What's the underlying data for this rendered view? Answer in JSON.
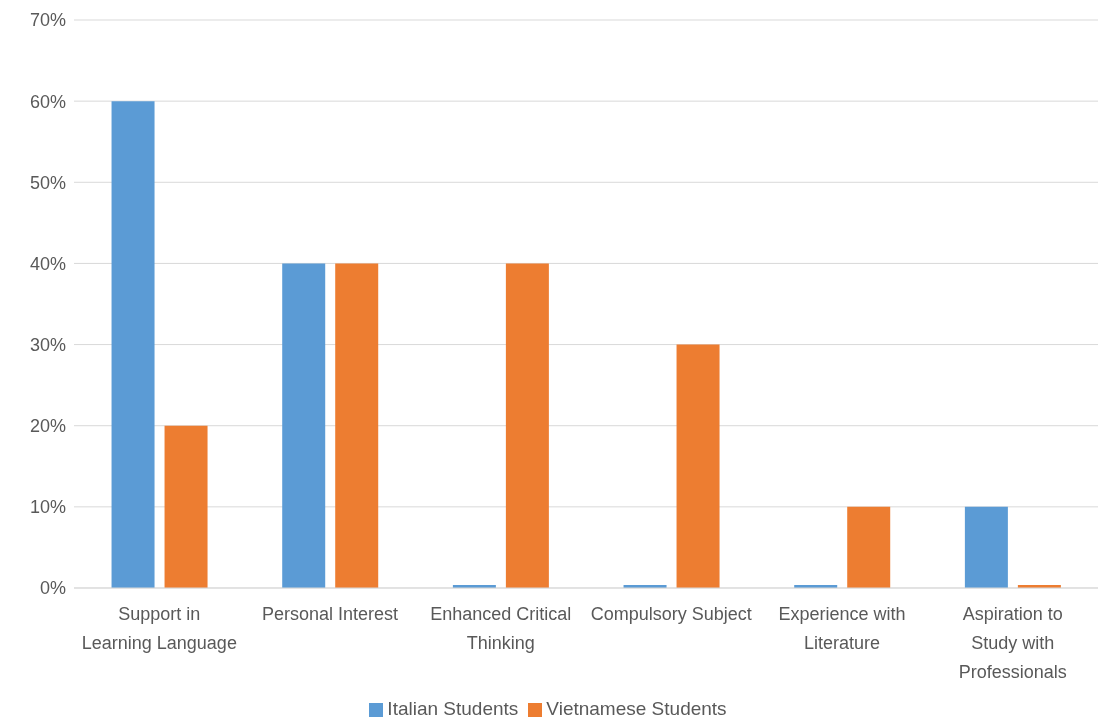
{
  "chart_data": {
    "type": "bar",
    "categories": [
      "Support in Learning Language",
      "Personal Interest",
      "Enhanced Critical Thinking",
      "Compulsory Subject",
      "Experience with Literature",
      "Aspiration to Study with Professionals"
    ],
    "series": [
      {
        "name": "Italian Students",
        "color": "#5b9bd5",
        "values": [
          60,
          40,
          0,
          0,
          0,
          10
        ]
      },
      {
        "name": "Vietnamese Students",
        "color": "#ed7d31",
        "values": [
          20,
          40,
          40,
          30,
          10,
          0
        ]
      }
    ],
    "ylim": [
      0,
      70
    ],
    "yticks": [
      {
        "value": 0,
        "label": "0%"
      },
      {
        "value": 10,
        "label": "10%"
      },
      {
        "value": 20,
        "label": "20%"
      },
      {
        "value": 30,
        "label": "30%"
      },
      {
        "value": 40,
        "label": "40%"
      },
      {
        "value": 50,
        "label": "50%"
      },
      {
        "value": 60,
        "label": "60%"
      },
      {
        "value": 70,
        "label": "70%"
      }
    ],
    "grid": "y",
    "legend": "bottom"
  }
}
